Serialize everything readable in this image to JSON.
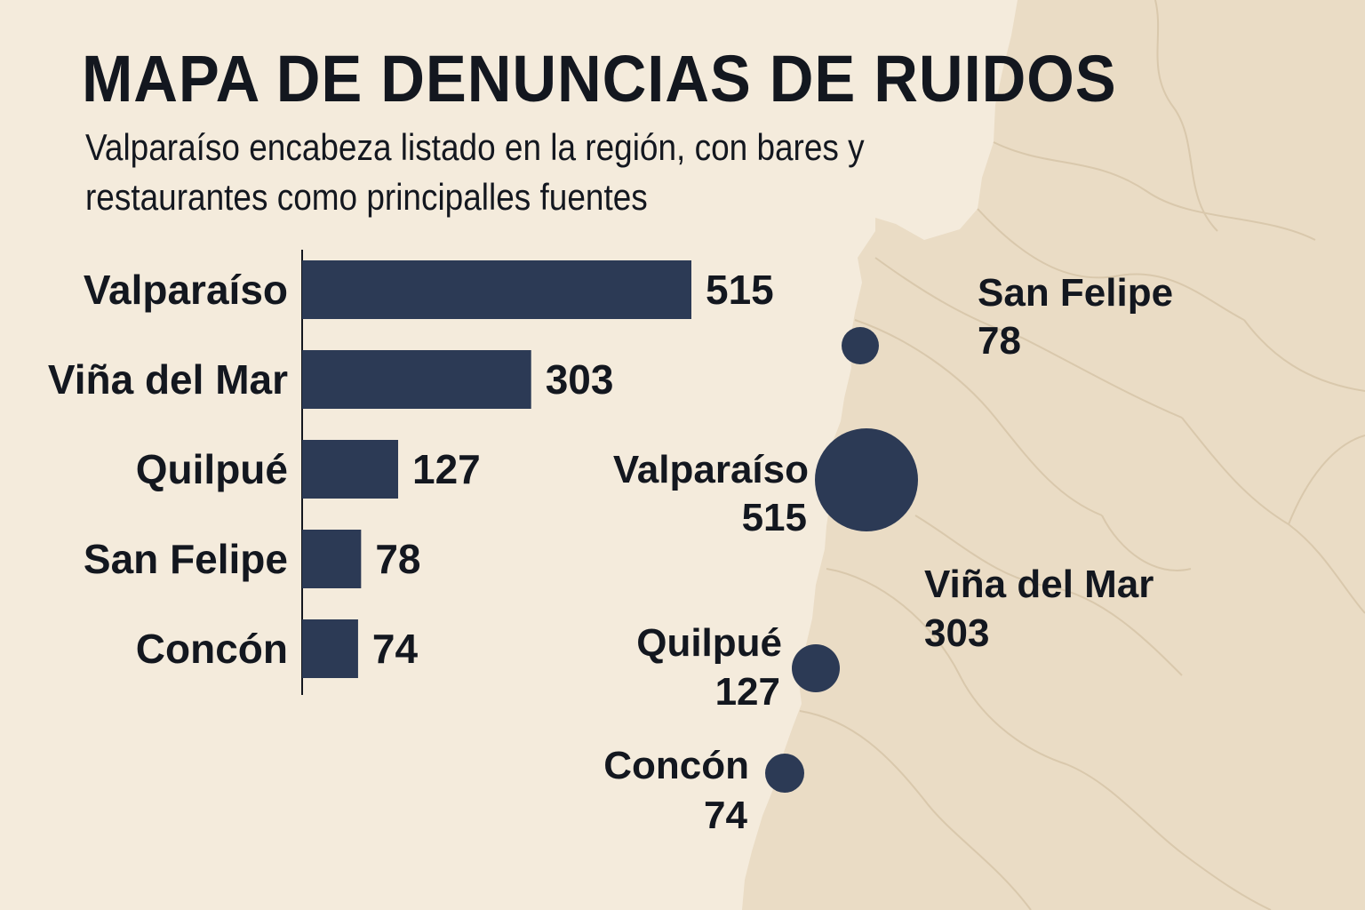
{
  "title": "MAPA DE DENUNCIAS DE RUIDOS",
  "subtitle": "Valparaíso encabeza listado en la región, con bares y restaurantes como principalles fuentes",
  "colors": {
    "background": "#f4ebdc",
    "land": "#eadcc5",
    "bar": "#2c3a55",
    "bubble": "#2c3a55",
    "text": "#13171f"
  },
  "chart_data": [
    {
      "type": "bar",
      "orientation": "horizontal",
      "categories": [
        "Valparaíso",
        "Viña del Mar",
        "Quilpué",
        "San Felipe",
        "Concón"
      ],
      "values": [
        515,
        303,
        127,
        78,
        74
      ],
      "xlim": [
        0,
        550
      ],
      "data_labels": true,
      "grid": false
    },
    {
      "type": "scatter",
      "subtype": "bubble-map",
      "points": [
        {
          "name": "San Felipe",
          "value": 78,
          "label_side": "right-detached"
        },
        {
          "name": "Valparaíso",
          "value": 515,
          "label_side": "left"
        },
        {
          "name": "Viña del Mar",
          "value": 303,
          "label_side": "right-detached"
        },
        {
          "name": "Quilpué",
          "value": 127,
          "label_side": "left"
        },
        {
          "name": "Concón",
          "value": 74,
          "label_side": "left"
        }
      ]
    }
  ]
}
